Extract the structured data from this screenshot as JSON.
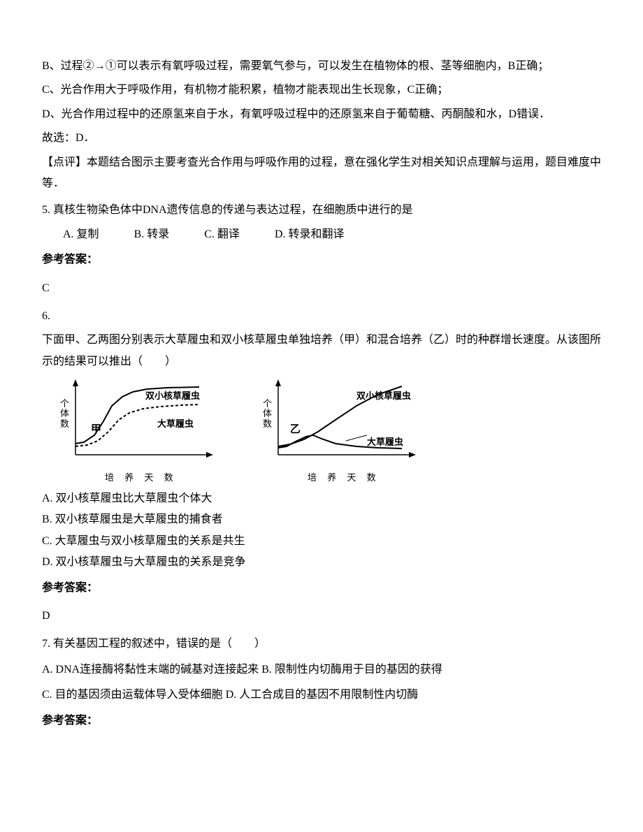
{
  "explanation": {
    "lineB": "B、过程②→①可以表示有氧呼吸过程，需要氧气参与，可以发生在植物体的根、茎等细胞内，B正确；",
    "lineC": "C、光合作用大于呼吸作用，有机物才能积累，植物才能表现出生长现象，C正确；",
    "lineD": "D、光合作用过程中的还原氢来自于水，有氧呼吸过程中的还原氢来自于葡萄糖、丙酮酸和水，D错误．",
    "conclusion": "故选：D．",
    "review": "【点评】本题结合图示主要考查光合作用与呼吸作用的过程，意在强化学生对相关知识点理解与运用，题目难度中等．"
  },
  "q5": {
    "stem": "5. 真核生物染色体中DNA遗传信息的传递与表达过程，在细胞质中进行的是",
    "options": {
      "A": "A. 复制",
      "B": "B. 转录",
      "C": "C. 翻译",
      "D": "D. 转录和翻译"
    },
    "answer_label": "参考答案：",
    "answer": "C"
  },
  "q6": {
    "number": "6.",
    "stem": "下面甲、乙两图分别表示大草履虫和双小核草履虫单独培养（甲）和混合培养（乙）时的种群增长速度。从该图所示的结果可以推出（　　）",
    "options": {
      "A": "A.  双小核草履虫比大草履虫个体大",
      "B": "B.  双小核草履虫是大草履虫的捕食者",
      "C": "C.  大草履虫与双小核草履虫的关系是共生",
      "D": "D.  双小核草履虫与大草履虫的关系是竞争"
    },
    "answer_label": "参考答案：",
    "answer": "D",
    "chart_jia": {
      "type": "line",
      "panel_label": "甲",
      "ylabel": "个体数",
      "xlabel": "培 养 天 数",
      "axis_range_x": [
        0,
        200
      ],
      "axis_range_y": [
        0,
        100
      ],
      "series": [
        {
          "name": "双小核草履虫",
          "label_pos": {
            "top": 12,
            "left": 118
          },
          "style": "solid",
          "stroke": "#000000",
          "stroke_width": 2,
          "points": [
            [
              18,
              92
            ],
            [
              30,
              90
            ],
            [
              45,
              80
            ],
            [
              58,
              60
            ],
            [
              70,
              38
            ],
            [
              85,
              25
            ],
            [
              100,
              18
            ],
            [
              120,
              14
            ],
            [
              150,
              12
            ],
            [
              195,
              11
            ]
          ]
        },
        {
          "name": "大草履虫",
          "label_pos": {
            "top": 52,
            "left": 135
          },
          "style": "dashed",
          "stroke": "#000000",
          "stroke_width": 2,
          "points": [
            [
              18,
              96
            ],
            [
              35,
              94
            ],
            [
              50,
              88
            ],
            [
              65,
              75
            ],
            [
              80,
              58
            ],
            [
              95,
              48
            ],
            [
              115,
              42
            ],
            [
              140,
              39
            ],
            [
              170,
              37
            ],
            [
              195,
              36
            ]
          ]
        }
      ],
      "axis_color": "#000000",
      "background": "#ffffff"
    },
    "chart_yi": {
      "type": "line",
      "panel_label": "乙",
      "ylabel": "个体数",
      "xlabel": "培 养 天 数",
      "axis_range_x": [
        0,
        200
      ],
      "axis_range_y": [
        0,
        100
      ],
      "series": [
        {
          "name": "双小核草履虫",
          "label_pos": {
            "top": 12,
            "left": 130
          },
          "style": "solid",
          "stroke": "#000000",
          "stroke_width": 2,
          "points": [
            [
              18,
              96
            ],
            [
              35,
              93
            ],
            [
              55,
              86
            ],
            [
              75,
              75
            ],
            [
              100,
              58
            ],
            [
              130,
              38
            ],
            [
              160,
              22
            ],
            [
              195,
              10
            ]
          ]
        },
        {
          "name": "大草履虫",
          "label_pos": {
            "top": 78,
            "left": 145
          },
          "style": "solid",
          "stroke": "#000000",
          "stroke_width": 2,
          "points": [
            [
              18,
              98
            ],
            [
              30,
              96
            ],
            [
              45,
              88
            ],
            [
              58,
              82
            ],
            [
              68,
              80
            ],
            [
              80,
              85
            ],
            [
              100,
              92
            ],
            [
              130,
              96
            ],
            [
              160,
              98
            ],
            [
              195,
              99
            ]
          ]
        }
      ],
      "axis_color": "#000000",
      "background": "#ffffff"
    }
  },
  "q7": {
    "stem": "7. 有关基因工程的叙述中，错误的是（　　）",
    "optA": "A.  DNA连接酶将黏性末端的碱基对连接起来",
    "optB": "B.  限制性内切酶用于目的基因的获得",
    "optC": "C.  目的基因须由运载体导入受体细胞",
    "optD": "D.  人工合成目的基因不用限制性内切酶",
    "answer_label": "参考答案："
  }
}
